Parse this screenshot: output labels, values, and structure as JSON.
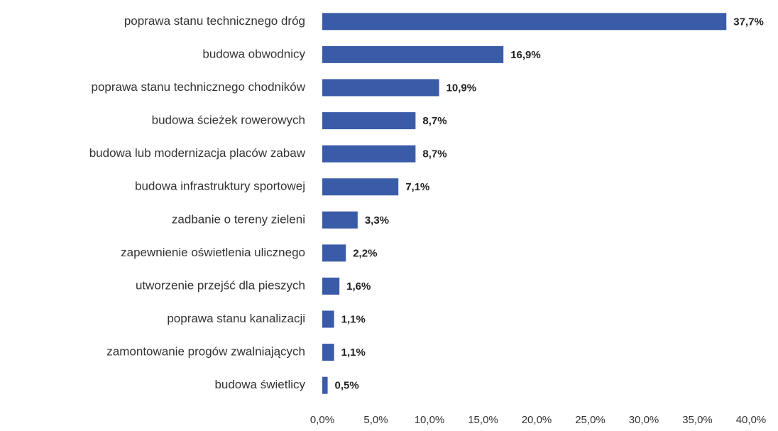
{
  "chart_data": {
    "type": "bar",
    "orientation": "horizontal",
    "categories": [
      "poprawa stanu technicznego dróg",
      "budowa obwodnicy",
      "poprawa stanu technicznego chodników",
      "budowa ścieżek rowerowych",
      "budowa lub modernizacja placów zabaw",
      "budowa infrastruktury sportowej",
      "zadbanie o tereny zieleni",
      "zapewnienie oświetlenia ulicznego",
      "utworzenie przejść dla pieszych",
      "poprawa stanu kanalizacji",
      "zamontowanie progów zwalniających",
      "budowa świetlicy"
    ],
    "values": [
      37.7,
      16.9,
      10.9,
      8.7,
      8.7,
      7.1,
      3.3,
      2.2,
      1.6,
      1.1,
      1.1,
      0.5
    ],
    "value_labels": [
      "37,7%",
      "16,9%",
      "10,9%",
      "8,7%",
      "8,7%",
      "7,1%",
      "3,3%",
      "2,2%",
      "1,6%",
      "1,1%",
      "1,1%",
      "0,5%"
    ],
    "color": "#3a5ba8",
    "xlim": [
      0,
      40
    ],
    "xticks": [
      {
        "value": 0,
        "label": "0,0%"
      },
      {
        "value": 5,
        "label": "5,0%"
      },
      {
        "value": 10,
        "label": "10,0%"
      },
      {
        "value": 15,
        "label": "15,0%"
      },
      {
        "value": 20,
        "label": "20,0%"
      },
      {
        "value": 25,
        "label": "25,0%"
      },
      {
        "value": 30,
        "label": "30,0%"
      },
      {
        "value": 35,
        "label": "35,0%"
      },
      {
        "value": 40,
        "label": "40,0%"
      }
    ],
    "grid": false
  }
}
